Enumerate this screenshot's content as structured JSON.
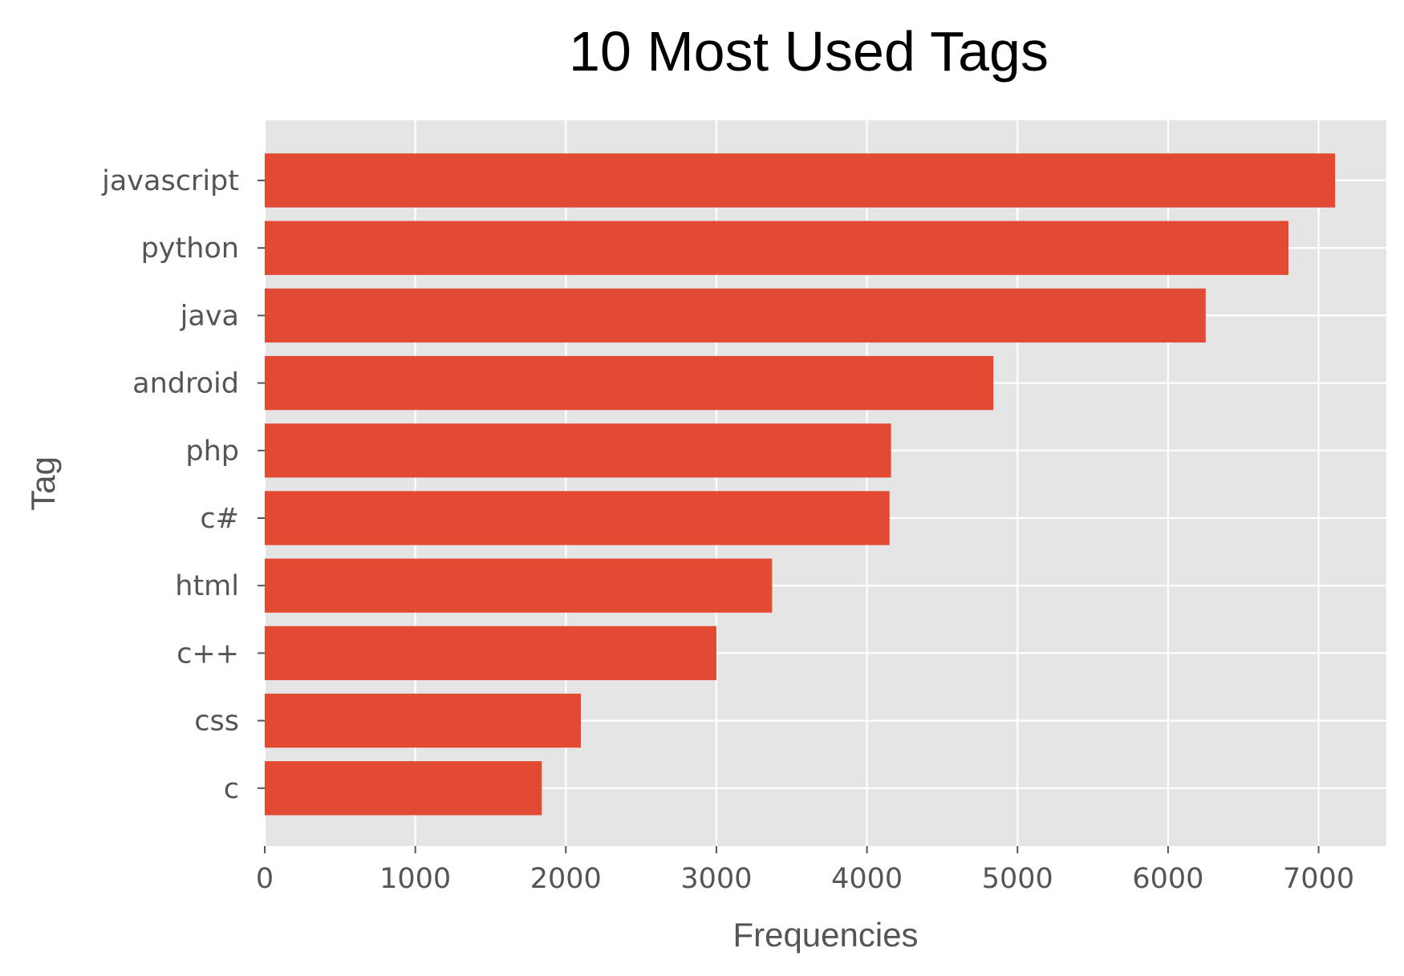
{
  "chart_data": {
    "type": "bar",
    "orientation": "horizontal",
    "title": "10 Most Used Tags",
    "xlabel": "Frequencies",
    "ylabel": "Tag",
    "categories": [
      "javascript",
      "python",
      "java",
      "android",
      "php",
      "c#",
      "html",
      "c++",
      "css",
      "c"
    ],
    "values": [
      7110,
      6800,
      6250,
      4840,
      4160,
      4150,
      3370,
      3000,
      2100,
      1840
    ],
    "xlim": [
      0,
      7450
    ],
    "xticks": [
      0,
      1000,
      2000,
      3000,
      4000,
      5000,
      6000,
      7000
    ],
    "xtick_labels": [
      "0",
      "1000",
      "2000",
      "3000",
      "4000",
      "5000",
      "6000",
      "7000"
    ],
    "grid": true,
    "colors": {
      "bar": "#E24A33",
      "plot_background": "#E5E5E5",
      "grid": "#FFFFFF",
      "tick_text": "#555555",
      "title_text": "#000000"
    }
  }
}
